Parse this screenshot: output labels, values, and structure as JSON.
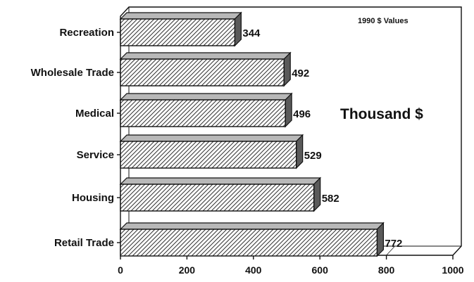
{
  "chart_data": {
    "type": "bar",
    "orientation": "horizontal",
    "three_d": true,
    "categories": [
      "Recreation",
      "Wholesale Trade",
      "Medical",
      "Service",
      "Housing",
      "Retail Trade"
    ],
    "values": [
      344,
      492,
      496,
      529,
      582,
      772
    ],
    "xlim": [
      0,
      1000
    ],
    "xticks": [
      "0",
      "200",
      "400",
      "600",
      "800",
      "1000"
    ],
    "annotation": "1990 $ Values",
    "unit_label": "Thousand $",
    "grid": false,
    "bar_fill": "diagonal-hatch",
    "colors": {
      "frame": "#111111",
      "bar_face": "#ffffff",
      "bar_top": "#b8b8b8",
      "bar_side": "#5a5a5a",
      "hatch": "#333333"
    }
  }
}
